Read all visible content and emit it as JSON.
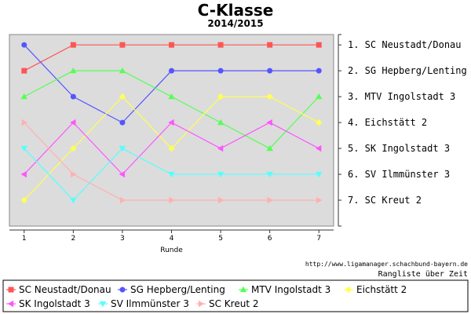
{
  "title": "C-Klasse",
  "subtitle": "2014/2015",
  "credit": "http://www.ligamanager.schachbund-bayern.de",
  "caption": "Rangliste über Zeit",
  "chart_data": {
    "type": "line",
    "title": "C-Klasse",
    "subtitle": "2014/2015",
    "xlabel": "Runde",
    "ylabel": "",
    "x": [
      1,
      2,
      3,
      4,
      5,
      6,
      7
    ],
    "xlim": [
      0.7,
      7.3
    ],
    "ylim": [
      0.6,
      8.0
    ],
    "y_inverted": true,
    "grid": false,
    "legend_position": "bottom",
    "rank_labels": [
      "1. SC Neustadt/Donau",
      "2. SG Hepberg/Lenting",
      "3. MTV Ingolstadt 3",
      "4. Eichstätt 2",
      "5. SK Ingolstadt 3",
      "6. SV Ilmmünster 3",
      "7. SC Kreut 2"
    ],
    "series": [
      {
        "name": "SC Neustadt/Donau",
        "values": [
          2,
          1,
          1,
          1,
          1,
          1,
          1
        ],
        "color": "#ff5555",
        "marker": "square"
      },
      {
        "name": "SG Hepberg/Lenting",
        "values": [
          1,
          3,
          4,
          2,
          2,
          2,
          2
        ],
        "color": "#5555ff",
        "marker": "circle"
      },
      {
        "name": "MTV Ingolstadt 3",
        "values": [
          3,
          2,
          2,
          3,
          4,
          5,
          3
        ],
        "color": "#55ff55",
        "marker": "triangle-up"
      },
      {
        "name": "Eichstätt 2",
        "values": [
          7,
          5,
          3,
          5,
          3,
          3,
          4
        ],
        "color": "#ffff55",
        "marker": "diamond"
      },
      {
        "name": "SK Ingolstadt 3",
        "values": [
          6,
          4,
          6,
          4,
          5,
          4,
          5
        ],
        "color": "#ff55ff",
        "marker": "triangle-left"
      },
      {
        "name": "SV Ilmmünster 3",
        "values": [
          5,
          7,
          5,
          6,
          6,
          6,
          6
        ],
        "color": "#55ffff",
        "marker": "triangle-down"
      },
      {
        "name": "SC Kreut 2",
        "values": [
          4,
          6,
          7,
          7,
          7,
          7,
          7
        ],
        "color": "#ffb0b0",
        "marker": "triangle-right"
      }
    ]
  }
}
